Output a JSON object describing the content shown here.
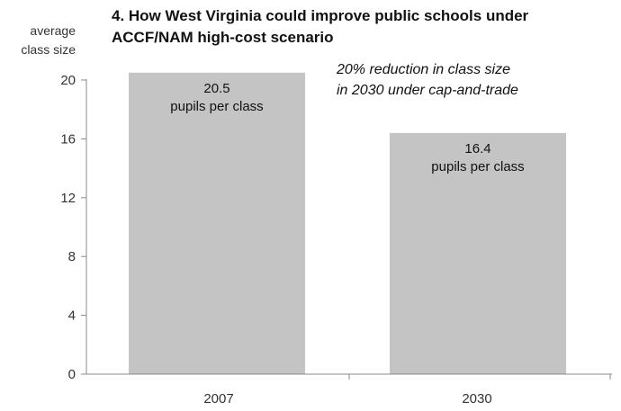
{
  "chart_data": {
    "type": "bar",
    "title": "4. How West Virginia could improve public schools under ACCF/NAM high-cost scenario",
    "ylabel": "average class size",
    "annotation": [
      "20% reduction in class size",
      "in 2030 under cap-and-trade"
    ],
    "categories": [
      "2007",
      "2030"
    ],
    "values": [
      20.5,
      16.4
    ],
    "value_labels": [
      "20.5",
      "16.4"
    ],
    "unit_label": "pupils per class",
    "ylim": [
      0,
      20
    ],
    "yticks": [
      "0",
      "4",
      "8",
      "12",
      "16",
      "20"
    ],
    "grid": false,
    "bar_color": "#c4c4c4",
    "axis_color": "#888888"
  }
}
